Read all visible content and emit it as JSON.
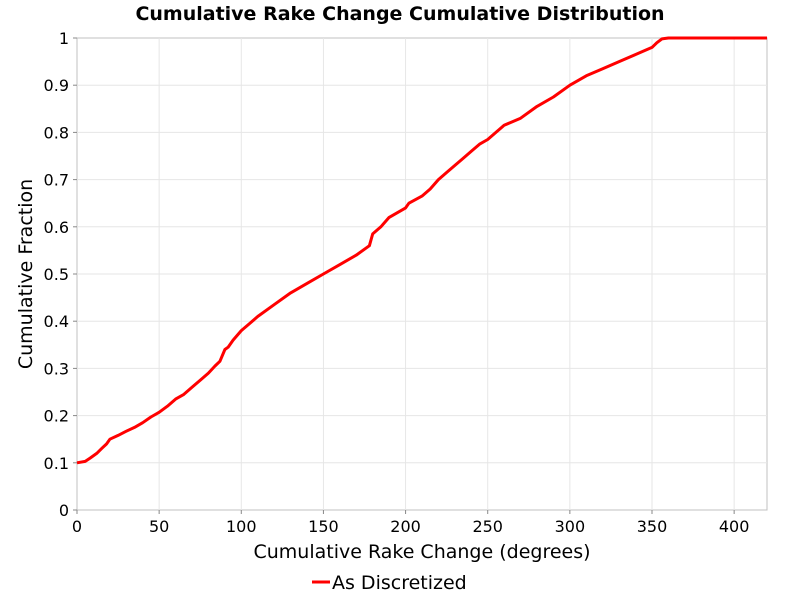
{
  "chart_data": {
    "type": "line",
    "title": "Cumulative Rake Change Cumulative Distribution",
    "xlabel": "Cumulative Rake Change (degrees)",
    "ylabel": "Cumulative Fraction",
    "xlim": [
      0,
      420
    ],
    "ylim": [
      0,
      1
    ],
    "x_ticks": [
      "0",
      "50",
      "100",
      "150",
      "200",
      "250",
      "300",
      "350",
      "400"
    ],
    "y_ticks": [
      "0",
      "0.1",
      "0.2",
      "0.3",
      "0.4",
      "0.5",
      "0.6",
      "0.7",
      "0.8",
      "0.9",
      "1"
    ],
    "grid": true,
    "legend_position": "bottom",
    "series": [
      {
        "name": "As Discretized",
        "color": "#ff0000",
        "x": [
          0,
          5,
          8,
          12,
          15,
          18,
          20,
          25,
          30,
          35,
          40,
          45,
          50,
          55,
          60,
          65,
          70,
          75,
          80,
          84,
          87,
          90,
          92,
          95,
          100,
          105,
          110,
          120,
          130,
          140,
          150,
          160,
          170,
          178,
          180,
          185,
          190,
          200,
          202,
          210,
          215,
          220,
          225,
          230,
          235,
          240,
          245,
          250,
          255,
          260,
          270,
          280,
          290,
          300,
          310,
          320,
          330,
          340,
          350,
          353,
          356,
          360,
          365,
          420
        ],
        "y": [
          0.1,
          0.103,
          0.11,
          0.12,
          0.13,
          0.14,
          0.15,
          0.158,
          0.167,
          0.175,
          0.185,
          0.197,
          0.207,
          0.22,
          0.235,
          0.245,
          0.26,
          0.275,
          0.29,
          0.305,
          0.315,
          0.34,
          0.345,
          0.36,
          0.38,
          0.395,
          0.41,
          0.435,
          0.46,
          0.48,
          0.5,
          0.52,
          0.54,
          0.56,
          0.585,
          0.6,
          0.62,
          0.64,
          0.65,
          0.665,
          0.68,
          0.7,
          0.715,
          0.73,
          0.745,
          0.76,
          0.775,
          0.785,
          0.8,
          0.815,
          0.83,
          0.855,
          0.875,
          0.9,
          0.92,
          0.935,
          0.95,
          0.965,
          0.98,
          0.99,
          0.998,
          1,
          1,
          1
        ]
      }
    ]
  }
}
